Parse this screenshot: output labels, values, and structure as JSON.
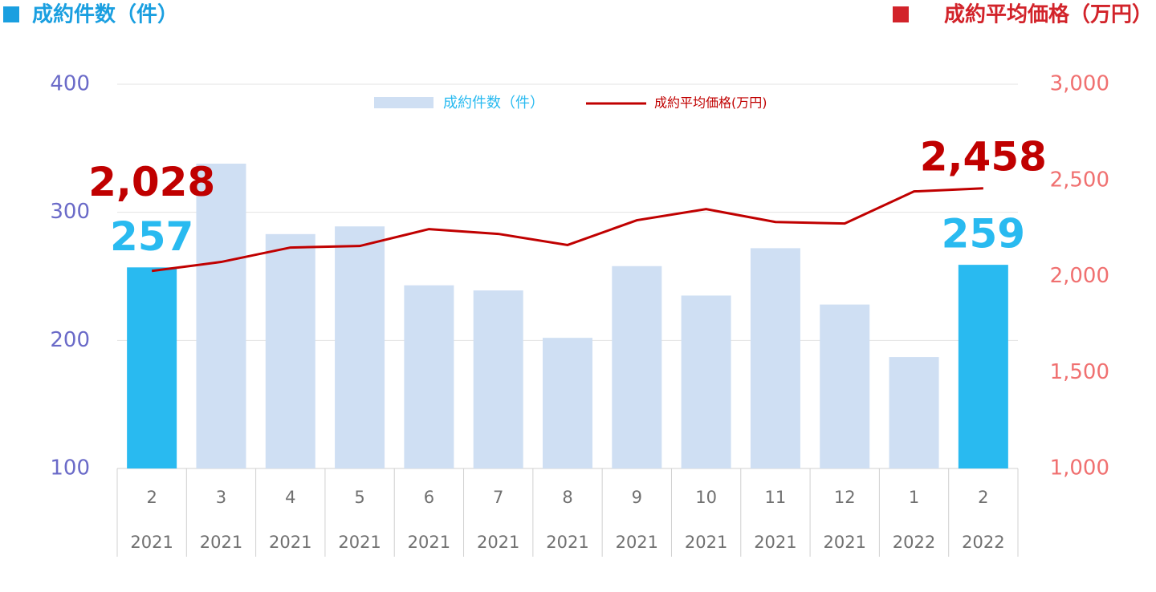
{
  "chart_data": {
    "type": "bar_line",
    "title": "成約件数（件）",
    "title_right": "成約平均価格（万円）",
    "categories": [
      [
        "2",
        "2021"
      ],
      [
        "3",
        "2021"
      ],
      [
        "4",
        "2021"
      ],
      [
        "5",
        "2021"
      ],
      [
        "6",
        "2021"
      ],
      [
        "7",
        "2021"
      ],
      [
        "8",
        "2021"
      ],
      [
        "9",
        "2021"
      ],
      [
        "10",
        "2021"
      ],
      [
        "11",
        "2021"
      ],
      [
        "12",
        "2021"
      ],
      [
        "1",
        "2022"
      ],
      [
        "2",
        "2022"
      ]
    ],
    "series": [
      {
        "name": "成約件数（件）",
        "type": "bar",
        "color": "#cfdff3",
        "colors": [
          "#29baf0",
          "#cfdff3",
          "#cfdff3",
          "#cfdff3",
          "#cfdff3",
          "#cfdff3",
          "#cfdff3",
          "#cfdff3",
          "#cfdff3",
          "#cfdff3",
          "#cfdff3",
          "#cfdff3",
          "#29baf0"
        ],
        "values": [
          257,
          338,
          283,
          289,
          243,
          239,
          202,
          258,
          235,
          272,
          228,
          187,
          259
        ],
        "value_labels": [
          "257",
          null,
          null,
          null,
          null,
          null,
          null,
          null,
          null,
          null,
          null,
          null,
          "259"
        ]
      },
      {
        "name": "成約平均価格(万円)",
        "type": "line",
        "axis": "y2",
        "color": "#c00000",
        "values": [
          2028,
          2075,
          2150,
          2158,
          2246,
          2221,
          2163,
          2292,
          2350,
          2283,
          2275,
          2442,
          2458
        ],
        "value_labels": [
          "2,028",
          null,
          null,
          null,
          null,
          null,
          null,
          null,
          null,
          null,
          null,
          null,
          "2,458"
        ]
      }
    ],
    "ylim": [
      100,
      400
    ],
    "yticks": [
      100,
      200,
      300,
      400
    ],
    "y2lim": [
      1000,
      3000
    ],
    "y2ticks": [
      {
        "value": 1000,
        "label": "1,000"
      },
      {
        "value": 1500,
        "label": "1,500"
      },
      {
        "value": 2000,
        "label": "2,000"
      },
      {
        "value": 2500,
        "label": "2,500"
      },
      {
        "value": 3000,
        "label": "3,000"
      }
    ],
    "grid": true
  }
}
